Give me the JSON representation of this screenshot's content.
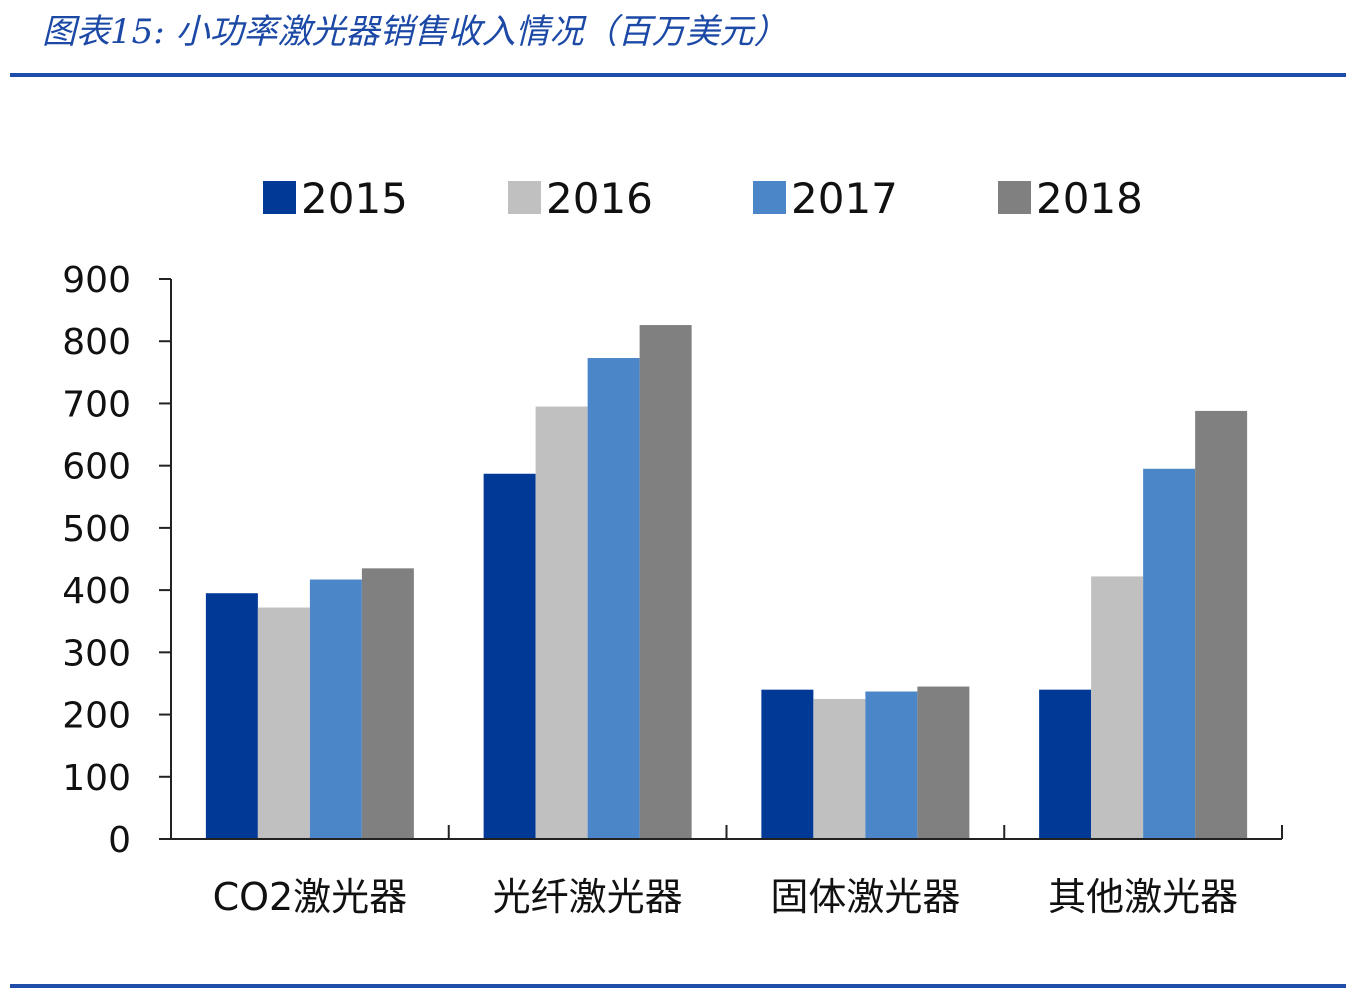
{
  "figure": {
    "title": "图表15:  小功率激光器销售收入情况（百万美元）"
  },
  "chart_data": {
    "type": "bar",
    "title": "",
    "xlabel": "",
    "ylabel": "",
    "categories": [
      "CO2激光器",
      "光纤激光器",
      "固体激光器",
      "其他激光器"
    ],
    "series": [
      {
        "name": "2015",
        "color": "#003a96",
        "values": [
          395,
          587,
          240,
          240
        ]
      },
      {
        "name": "2016",
        "color": "#c0c0c0",
        "values": [
          372,
          695,
          225,
          422
        ]
      },
      {
        "name": "2017",
        "color": "#4a86c8",
        "values": [
          417,
          773,
          237,
          595
        ]
      },
      {
        "name": "2018",
        "color": "#808080",
        "values": [
          435,
          826,
          245,
          688
        ]
      }
    ],
    "ylim": [
      0,
      900
    ],
    "yticks": [
      "0",
      "100",
      "200",
      "300",
      "400",
      "500",
      "600",
      "700",
      "800",
      "900"
    ],
    "legend": "top",
    "grid": false
  }
}
